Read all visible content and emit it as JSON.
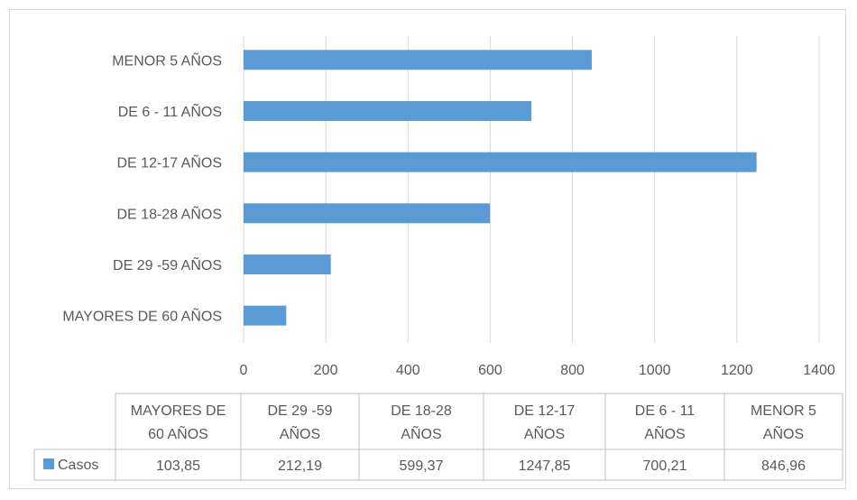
{
  "chart_data": {
    "type": "bar",
    "orientation": "horizontal",
    "categories": [
      "MAYORES DE 60 AÑOS",
      "DE 29 -59 AÑOS",
      "DE 18-28 AÑOS",
      "DE 12-17 AÑOS",
      "DE 6 - 11 AÑOS",
      "MENOR 5 AÑOS"
    ],
    "series": [
      {
        "name": "Casos",
        "values": [
          103.85,
          212.19,
          599.37,
          1247.85,
          700.21,
          846.96
        ],
        "color": "#5b9bd5"
      }
    ],
    "value_labels": [
      "103,85",
      "212,19",
      "599,37",
      "1247,85",
      "700,21",
      "846,96"
    ],
    "title": "",
    "xlabel": "",
    "ylabel": "",
    "xlim": [
      0,
      1400
    ],
    "ticks": [
      0,
      200,
      400,
      600,
      800,
      1000,
      1200,
      1400
    ],
    "grid": true,
    "legend": "data-table",
    "table_headers": [
      [
        "MAYORES DE",
        "60 AÑOS"
      ],
      [
        "DE 29 -59",
        "AÑOS"
      ],
      [
        "DE 18-28",
        "AÑOS"
      ],
      [
        "DE 12-17",
        "AÑOS"
      ],
      [
        "DE 6 - 11",
        "AÑOS"
      ],
      [
        "MENOR 5",
        "AÑOS"
      ]
    ]
  }
}
